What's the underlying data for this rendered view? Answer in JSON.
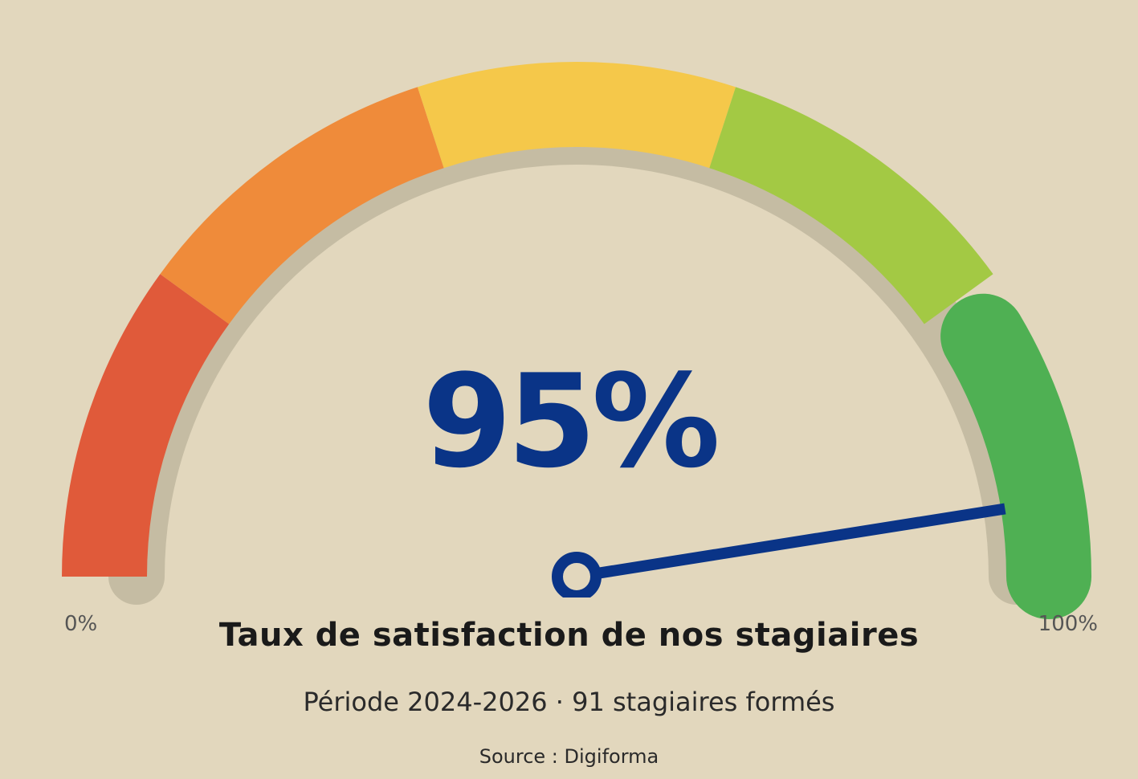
{
  "colors": {
    "background": "#e2d7bd",
    "track_shadow": "#c5bca3",
    "needle": "#0a3487",
    "value_text": "#0a3487",
    "title_text": "#1a1a1a",
    "subtitle_text": "#2a2a2a",
    "axis_text": "#555555"
  },
  "chart_data": {
    "type": "gauge",
    "value": 95,
    "display_value": "95%",
    "min": 0,
    "max": 100,
    "min_label": "0%",
    "max_label": "100%",
    "title": "Taux de satisfaction de nos stagiaires",
    "subtitle": "Période 2024-2026 · 91 stagiaires formés",
    "source": "Source : Digiforma",
    "bands": [
      {
        "from": 0,
        "to": 20,
        "color": "#e05a3a"
      },
      {
        "from": 20,
        "to": 40,
        "color": "#ef8b3a"
      },
      {
        "from": 40,
        "to": 60,
        "color": "#f5c84a"
      },
      {
        "from": 60,
        "to": 80,
        "color": "#a3c944"
      },
      {
        "from": 80,
        "to": 100,
        "color": "#4fb053"
      }
    ]
  }
}
